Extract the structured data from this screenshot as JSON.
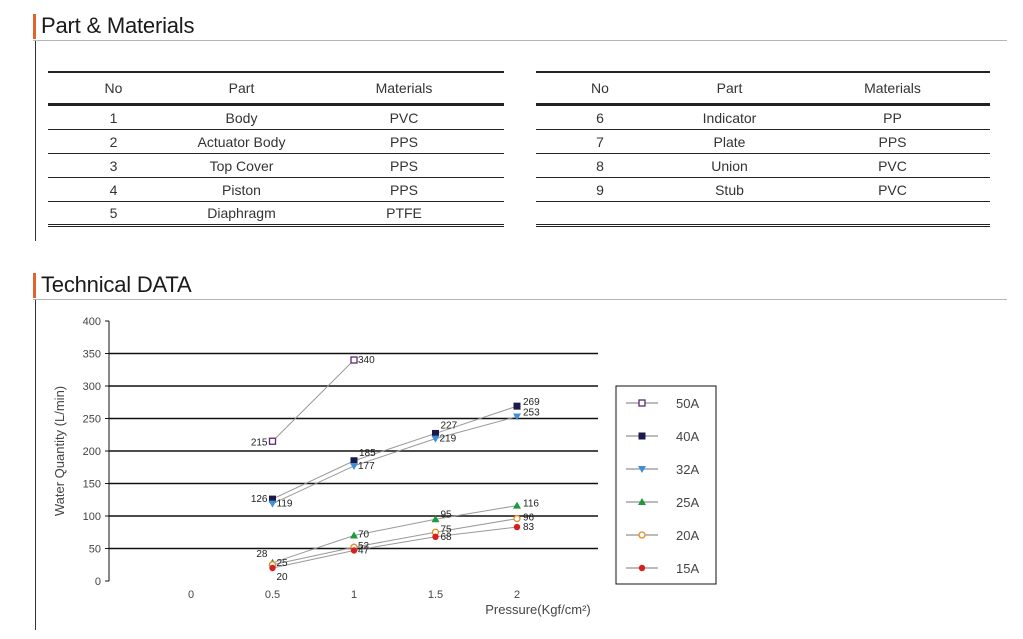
{
  "sections": {
    "parts_title": "Part & Materials",
    "tech_title": "Technical DATA"
  },
  "parts_table": {
    "headers": [
      "No",
      "Part",
      "Materials"
    ],
    "left_rows": [
      [
        "1",
        "Body",
        "PVC"
      ],
      [
        "2",
        "Actuator Body",
        "PPS"
      ],
      [
        "3",
        "Top Cover",
        "PPS"
      ],
      [
        "4",
        "Piston",
        "PPS"
      ],
      [
        "5",
        "Diaphragm",
        "PTFE"
      ]
    ],
    "right_rows": [
      [
        "6",
        "Indicator",
        "PP"
      ],
      [
        "7",
        "Plate",
        "PPS"
      ],
      [
        "8",
        "Union",
        "PVC"
      ],
      [
        "9",
        "Stub",
        "PVC"
      ],
      [
        "",
        "",
        ""
      ]
    ]
  },
  "chart_data": {
    "type": "line",
    "title": "",
    "xlabel": "Pressure(Kgf/cm²)",
    "ylabel": "Water Quantity (L/min)",
    "x_ticks": [
      "0",
      "0.5",
      "1",
      "1.5",
      "2"
    ],
    "y_ticks": [
      "0",
      "50",
      "100",
      "150",
      "200",
      "250",
      "300",
      "350",
      "400"
    ],
    "xlim": [
      0,
      2
    ],
    "ylim": [
      0,
      400
    ],
    "grid": "horizontal lines from 50 to 350",
    "legend_position": "right",
    "line_color": "#999999",
    "series": [
      {
        "name": "50A",
        "marker": "open-square",
        "color": "#5b2a6e",
        "x": [
          0.5,
          1
        ],
        "y": [
          215,
          340
        ]
      },
      {
        "name": "40A",
        "marker": "filled-square",
        "color": "#1c1a4a",
        "x": [
          0.5,
          1,
          1.5,
          2
        ],
        "y": [
          126,
          185,
          227,
          269
        ]
      },
      {
        "name": "32A",
        "marker": "down-triangle",
        "color": "#3d8fd6",
        "x": [
          0.5,
          1,
          1.5,
          2
        ],
        "y": [
          119,
          177,
          219,
          253
        ]
      },
      {
        "name": "25A",
        "marker": "up-triangle",
        "color": "#1b9a3e",
        "x": [
          0.5,
          1,
          1.5,
          2
        ],
        "y": [
          28,
          70,
          95,
          116
        ]
      },
      {
        "name": "20A",
        "marker": "open-circle",
        "color": "#e88a1c",
        "x": [
          0.5,
          1,
          1.5,
          2
        ],
        "y": [
          25,
          52,
          75,
          96
        ]
      },
      {
        "name": "15A",
        "marker": "filled-circle",
        "color": "#d62020",
        "x": [
          0.5,
          1,
          1.5,
          2
        ],
        "y": [
          20,
          47,
          68,
          83
        ]
      }
    ]
  }
}
